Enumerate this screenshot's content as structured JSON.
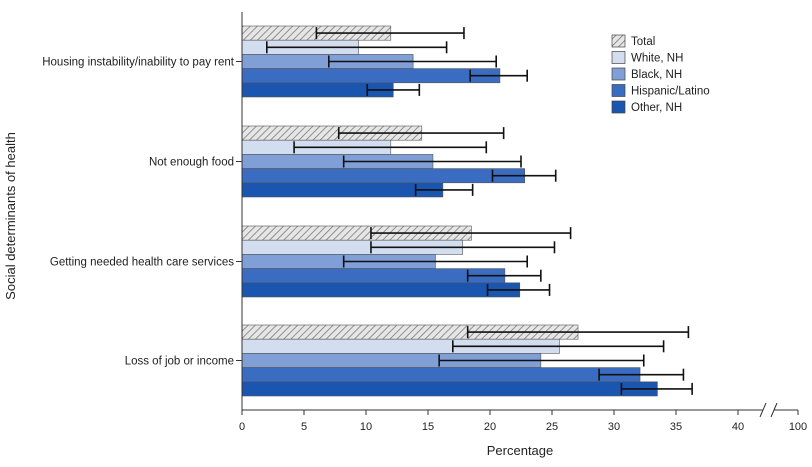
{
  "chart_data": {
    "type": "bar",
    "orientation": "horizontal",
    "title": "",
    "xlabel": "Percentage",
    "ylabel": "Social determinants of health",
    "xlim": [
      0,
      100
    ],
    "x_ticks": [
      0,
      5,
      10,
      15,
      20,
      25,
      30,
      35,
      40,
      100
    ],
    "x_tick_labels": [
      "0",
      "5",
      "10",
      "15",
      "20",
      "25",
      "30",
      "35",
      "40",
      "100"
    ],
    "axis_break": "between 40 and 100",
    "legend_position": "top-right",
    "categories": [
      "Housing instability/inability to pay rent",
      "Not enough food",
      "Getting needed health care services",
      "Loss of job or income"
    ],
    "series": [
      {
        "name": "Total",
        "color": "#d9d9d9",
        "pattern": "hatch",
        "values": [
          12,
          14.5,
          18.5,
          27.1
        ],
        "ci_lower": [
          6,
          7.8,
          10.4,
          18.2
        ],
        "ci_upper": [
          17.9,
          21.1,
          26.5,
          36
        ]
      },
      {
        "name": "White, NH",
        "color": "#d3ddf0",
        "values": [
          9.4,
          12,
          17.8,
          25.6
        ],
        "ci_lower": [
          2,
          4.2,
          10.4,
          17
        ],
        "ci_upper": [
          16.5,
          19.7,
          25.2,
          34
        ]
      },
      {
        "name": "Black, NH",
        "color": "#7f9fd6",
        "values": [
          13.8,
          15.4,
          15.6,
          24.1
        ],
        "ci_lower": [
          7,
          8.2,
          8.2,
          15.9
        ],
        "ci_upper": [
          20.5,
          22.5,
          23,
          32.4
        ]
      },
      {
        "name": "Hispanic/Latino",
        "color": "#3a6cc2",
        "values": [
          20.8,
          22.8,
          21.2,
          32.1
        ],
        "ci_lower": [
          18.4,
          20.2,
          18.2,
          28.8
        ],
        "ci_upper": [
          23,
          25.3,
          24.1,
          35.6
        ]
      },
      {
        "name": "Other, NH",
        "color": "#1a55b0",
        "values": [
          12.2,
          16.2,
          22.4,
          33.5
        ],
        "ci_lower": [
          10.1,
          14,
          19.8,
          30.6
        ],
        "ci_upper": [
          14.3,
          18.6,
          24.8,
          36.3
        ]
      }
    ]
  }
}
